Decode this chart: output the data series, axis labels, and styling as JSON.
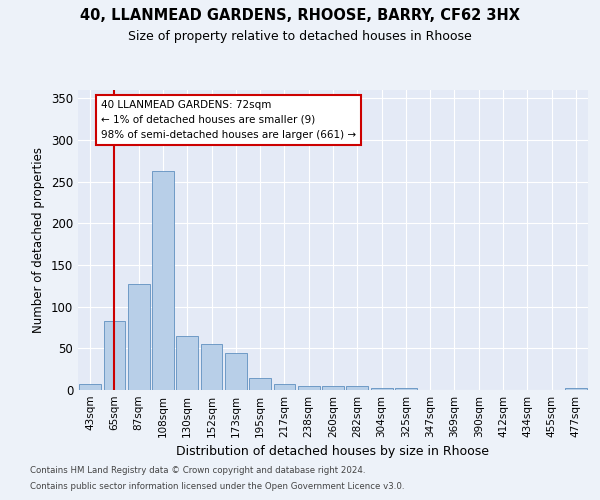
{
  "title_line1": "40, LLANMEAD GARDENS, RHOOSE, BARRY, CF62 3HX",
  "title_line2": "Size of property relative to detached houses in Rhoose",
  "xlabel": "Distribution of detached houses by size in Rhoose",
  "ylabel": "Number of detached properties",
  "categories": [
    "43sqm",
    "65sqm",
    "87sqm",
    "108sqm",
    "130sqm",
    "152sqm",
    "173sqm",
    "195sqm",
    "217sqm",
    "238sqm",
    "260sqm",
    "282sqm",
    "304sqm",
    "325sqm",
    "347sqm",
    "369sqm",
    "390sqm",
    "412sqm",
    "434sqm",
    "455sqm",
    "477sqm"
  ],
  "bar_heights": [
    7,
    83,
    127,
    263,
    65,
    55,
    45,
    14,
    7,
    5,
    5,
    5,
    3,
    2,
    0,
    0,
    0,
    0,
    0,
    0,
    3
  ],
  "bar_color": "#b8cfe8",
  "bar_edge_color": "#6090c0",
  "annotation_text": "40 LLANMEAD GARDENS: 72sqm\n← 1% of detached houses are smaller (9)\n98% of semi-detached houses are larger (661) →",
  "ylim_max": 360,
  "yticks": [
    0,
    50,
    100,
    150,
    200,
    250,
    300,
    350
  ],
  "footer_line1": "Contains HM Land Registry data © Crown copyright and database right 2024.",
  "footer_line2": "Contains public sector information licensed under the Open Government Licence v3.0.",
  "background_color": "#edf2f9",
  "plot_bg_color": "#e4eaf6",
  "grid_color": "#ffffff",
  "red_color": "#cc0000"
}
